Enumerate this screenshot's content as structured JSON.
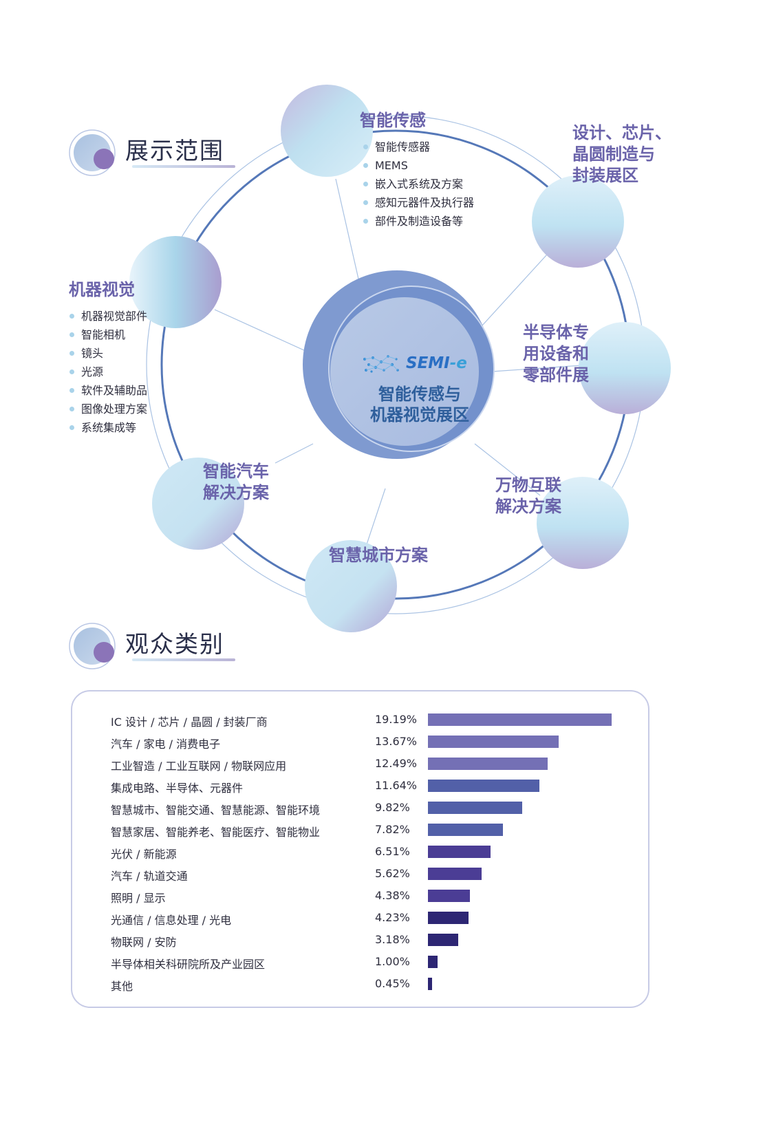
{
  "sections": {
    "exhibit_title": "展示范围",
    "audience_title": "观众类别"
  },
  "center": {
    "logo_text": "SEMI",
    "logo_suffix": "-e",
    "line1": "智能传感与",
    "line2": "机器视觉展区"
  },
  "bubbles": {
    "smart_sensing": {
      "title": "智能传感",
      "items": [
        "智能传感器",
        "MEMS",
        "嵌入式系统及方案",
        "感知元器件及执行器",
        "部件及制造设备等"
      ]
    },
    "design_chip": {
      "lines": [
        "设计、芯片、",
        "晶圆制造与",
        "封装展区"
      ]
    },
    "machine_vision": {
      "title": "机器视觉",
      "items": [
        "机器视觉部件",
        "智能相机",
        "镜头",
        "光源",
        "软件及辅助品",
        "图像处理方案",
        "系统集成等"
      ]
    },
    "semi_equipment": {
      "lines": [
        "半导体专",
        "用设备和",
        "零部件展"
      ]
    },
    "smart_auto": {
      "lines": [
        "智能汽车",
        "解决方案"
      ]
    },
    "iot": {
      "lines": [
        "万物互联",
        "解决方案"
      ]
    },
    "smart_city": {
      "lines": [
        "智慧城市方案"
      ]
    }
  },
  "audience": {
    "rows": [
      {
        "label": "IC 设计 / 芯片 / 晶圆 / 封装厂商",
        "pct": "19.19%",
        "value": 19.19,
        "color": "#7470b5"
      },
      {
        "label": "汽车 / 家电 / 消费电子",
        "pct": "13.67%",
        "value": 13.67,
        "color": "#7470b5"
      },
      {
        "label": "工业智造 / 工业互联网 / 物联网应用",
        "pct": "12.49%",
        "value": 12.49,
        "color": "#7470b5"
      },
      {
        "label": "集成电路、半导体、元器件",
        "pct": "11.64%",
        "value": 11.64,
        "color": "#5260a8"
      },
      {
        "label": "智慧城市、智能交通、智慧能源、智能环境",
        "pct": "9.82%",
        "value": 9.82,
        "color": "#5260a8"
      },
      {
        "label": "智慧家居、智能养老、智能医疗、智能物业",
        "pct": "7.82%",
        "value": 7.82,
        "color": "#5260a8"
      },
      {
        "label": "光伏 / 新能源",
        "pct": "6.51%",
        "value": 6.51,
        "color": "#4b3d95"
      },
      {
        "label": "汽车 / 轨道交通",
        "pct": "5.62%",
        "value": 5.62,
        "color": "#4b3d95"
      },
      {
        "label": "照明 / 显示",
        "pct": "4.38%",
        "value": 4.38,
        "color": "#4b3d95"
      },
      {
        "label": "光通信 / 信息处理 / 光电",
        "pct": "4.23%",
        "value": 4.23,
        "color": "#2d2673"
      },
      {
        "label": "物联网 / 安防",
        "pct": "3.18%",
        "value": 3.18,
        "color": "#2d2673"
      },
      {
        "label": "半导体相关科研院所及产业园区",
        "pct": "1.00%",
        "value": 1.0,
        "color": "#2d2673"
      },
      {
        "label": "其他",
        "pct": "0.45%",
        "value": 0.45,
        "color": "#2d2673"
      }
    ]
  }
}
